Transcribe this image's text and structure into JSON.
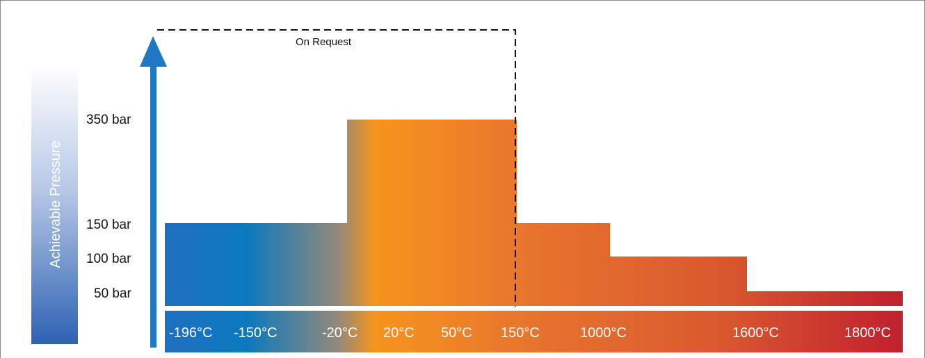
{
  "chart_data": {
    "type": "bar",
    "ylabel": "Achievable Pressure",
    "y_ticks": [
      {
        "label": "350 bar",
        "value": 350
      },
      {
        "label": "150 bar",
        "value": 150
      },
      {
        "label": "100 bar",
        "value": 100
      },
      {
        "label": "50 bar",
        "value": 50
      }
    ],
    "temperature_labels": [
      "-196°C",
      "-150°C",
      "-20°C",
      "20°C",
      "50°C",
      "150°C",
      "1000°C",
      "1600°C",
      "1800°C"
    ],
    "segments": [
      {
        "from": "-196°C",
        "to": "-20°C",
        "pressure": 150
      },
      {
        "from": "-20°C",
        "to": "150°C",
        "pressure": 350
      },
      {
        "from": "150°C",
        "to": "1000°C",
        "pressure": 150
      },
      {
        "from": "1000°C",
        "to": "1600°C",
        "pressure": 100
      },
      {
        "from": "1600°C",
        "to": "1800°C",
        "pressure": 50
      }
    ],
    "annotation": "On Request",
    "colors": {
      "cold": "#1f6fbf",
      "mid": "#f7941d",
      "hot": "#c0202e",
      "arrow": "#1f78c1"
    }
  }
}
